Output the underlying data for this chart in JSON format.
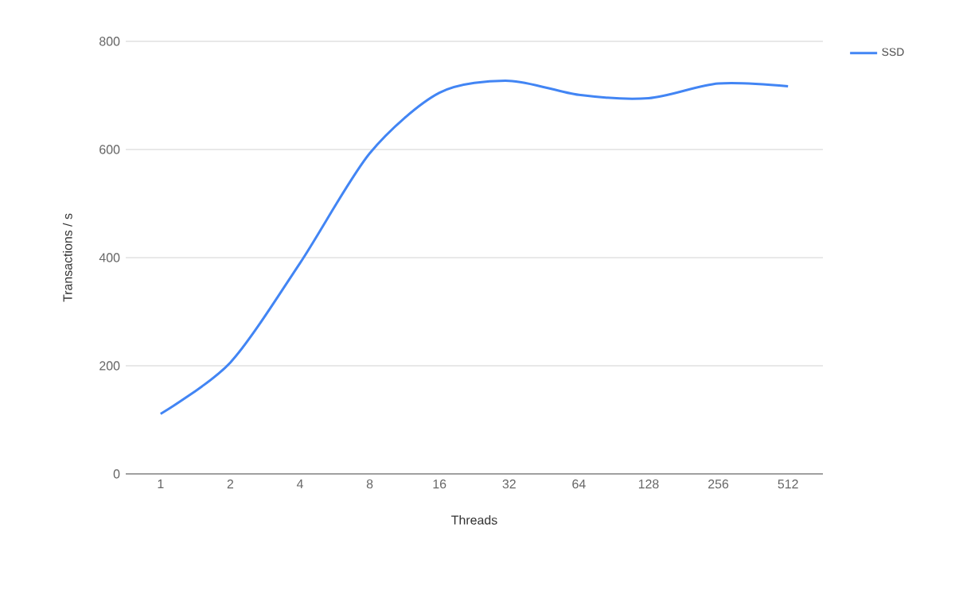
{
  "chart_data": {
    "type": "line",
    "xlabel": "Threads",
    "ylabel": "Transactions / s",
    "categories": [
      "1",
      "2",
      "4",
      "8",
      "16",
      "32",
      "64",
      "128",
      "256",
      "512"
    ],
    "series": [
      {
        "name": "SSD",
        "color": "#4285f4",
        "values": [
          111,
          206,
          390,
          593,
          705,
          727,
          701,
          695,
          722,
          717
        ]
      }
    ],
    "ylim": [
      0,
      800
    ],
    "yticks": [
      0,
      200,
      400,
      600,
      800
    ],
    "grid": "y",
    "legend": "top right",
    "marker": "none"
  }
}
